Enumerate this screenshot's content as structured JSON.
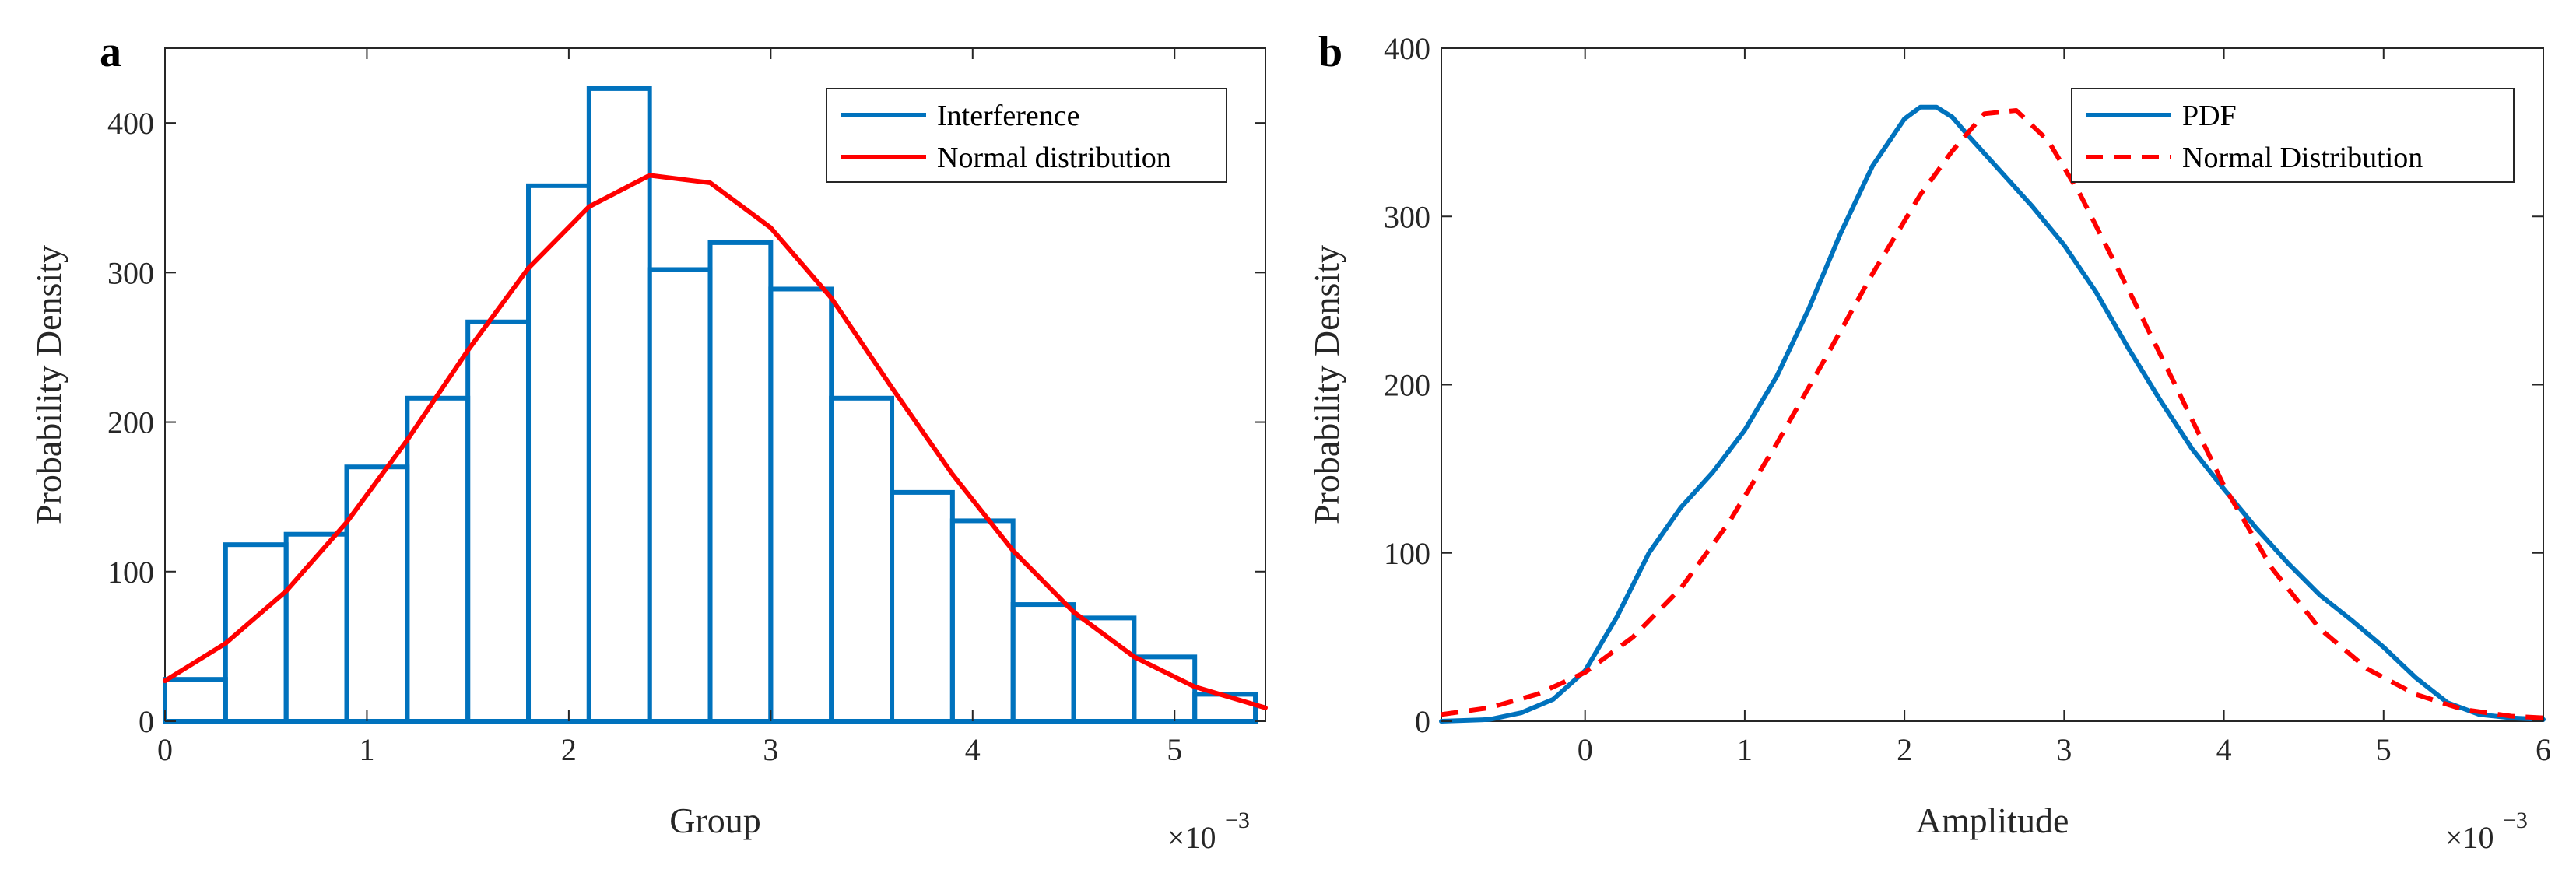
{
  "colors": {
    "blue": "#0072bd",
    "red": "#ff0000",
    "axis": "#262626"
  },
  "chart_data": [
    {
      "panel": "a",
      "type": "bar",
      "xlabel": "Group",
      "ylabel": "Probability Density",
      "x_exponent_base": "×10",
      "x_exponent_power": "−3",
      "xlim": [
        0,
        5.45
      ],
      "ylim": [
        0,
        450
      ],
      "xticks": [
        0,
        1,
        2,
        3,
        4,
        5
      ],
      "xtick_labels": [
        "0",
        "1",
        "2",
        "3",
        "4",
        "5"
      ],
      "yticks": [
        0,
        100,
        200,
        300,
        400
      ],
      "ytick_labels": [
        "0",
        "100",
        "200",
        "300",
        "400"
      ],
      "legend_position": "top-right",
      "series": [
        {
          "name": "Interference",
          "kind": "histogram",
          "bin_edges": [
            0,
            0.3,
            0.6,
            0.9,
            1.2,
            1.5,
            1.8,
            2.1,
            2.4,
            2.7,
            3.0,
            3.3,
            3.6,
            3.9,
            4.2,
            4.5,
            4.8,
            5.1,
            5.4
          ],
          "values": [
            28,
            118,
            125,
            170,
            216,
            267,
            358,
            423,
            302,
            320,
            289,
            216,
            153,
            134,
            78,
            69,
            43,
            18
          ]
        },
        {
          "name": "Normal distribution",
          "kind": "line",
          "x": [
            0,
            0.3,
            0.6,
            0.9,
            1.2,
            1.5,
            1.8,
            2.1,
            2.4,
            2.7,
            3.0,
            3.3,
            3.6,
            3.9,
            4.2,
            4.5,
            4.8,
            5.1,
            5.45
          ],
          "y": [
            27,
            52,
            87,
            133,
            188,
            248,
            303,
            344,
            365,
            360,
            330,
            283,
            223,
            165,
            114,
            73,
            43,
            23,
            9
          ]
        }
      ]
    },
    {
      "panel": "b",
      "type": "line",
      "xlabel": "Amplitude",
      "ylabel": "Probability Density",
      "x_exponent_base": "×10",
      "x_exponent_power": "−3",
      "xlim": [
        -0.9,
        6
      ],
      "ylim": [
        0,
        400
      ],
      "xticks": [
        0,
        1,
        2,
        3,
        4,
        5,
        6
      ],
      "xtick_labels": [
        "0",
        "1",
        "2",
        "3",
        "4",
        "5",
        "6"
      ],
      "yticks": [
        0,
        100,
        200,
        300,
        400
      ],
      "ytick_labels": [
        "0",
        "100",
        "200",
        "300",
        "400"
      ],
      "legend_position": "top-right",
      "series": [
        {
          "name": "PDF",
          "style": "solid",
          "x": [
            -0.9,
            -0.6,
            -0.4,
            -0.2,
            0.0,
            0.2,
            0.4,
            0.6,
            0.8,
            1.0,
            1.2,
            1.4,
            1.6,
            1.8,
            2.0,
            2.1,
            2.2,
            2.3,
            2.4,
            2.6,
            2.8,
            3.0,
            3.2,
            3.4,
            3.6,
            3.8,
            4.0,
            4.2,
            4.4,
            4.6,
            4.8,
            5.0,
            5.2,
            5.4,
            5.6,
            5.8,
            6.0
          ],
          "y": [
            0,
            1,
            5,
            13,
            30,
            62,
            100,
            127,
            148,
            173,
            205,
            245,
            290,
            330,
            358,
            365,
            365,
            359,
            348,
            327,
            306,
            283,
            255,
            222,
            191,
            162,
            138,
            115,
            94,
            75,
            60,
            44,
            26,
            11,
            4,
            2,
            1
          ]
        },
        {
          "name": "Normal Distribution",
          "style": "dashed",
          "x": [
            -0.9,
            -0.6,
            -0.3,
            0.0,
            0.3,
            0.6,
            0.9,
            1.2,
            1.5,
            1.8,
            2.1,
            2.3,
            2.5,
            2.7,
            2.9,
            3.1,
            3.4,
            3.7,
            4.0,
            4.3,
            4.6,
            4.9,
            5.2,
            5.5,
            5.8,
            6.0
          ],
          "y": [
            4,
            8,
            16,
            29,
            50,
            79,
            118,
            165,
            215,
            266,
            313,
            339,
            361,
            363,
            345,
            313,
            257,
            199,
            140,
            91,
            55,
            31,
            16,
            7,
            3,
            2
          ]
        }
      ]
    }
  ]
}
